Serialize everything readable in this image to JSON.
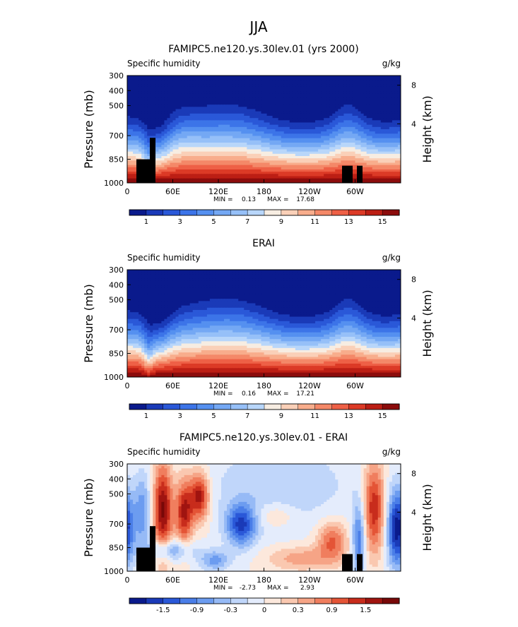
{
  "figure": {
    "main_title": "JJA"
  },
  "chart_data": [
    {
      "type": "heatmap",
      "id": "model",
      "title": "FAMIPC5.ne120.ys.30lev.01 (yrs 2000)",
      "left_label": "Specific humidity",
      "right_label": "g/kg",
      "ylabel": "Pressure (mb)",
      "y2label": "Height (km)",
      "xticks": [
        "0",
        "60E",
        "120E",
        "180",
        "120W",
        "60W"
      ],
      "yticks": [
        "300",
        "400",
        "500",
        "700",
        "850",
        "1000"
      ],
      "y2ticks": [
        "8",
        "4"
      ],
      "stats": {
        "min_label": "MIN =",
        "min": "0.13",
        "max_label": "MAX =",
        "max": "17.68"
      },
      "colorbar_labels": [
        "1",
        "3",
        "5",
        "7",
        "9",
        "11",
        "13",
        "15"
      ],
      "value_range": [
        0,
        17.68
      ]
    },
    {
      "type": "heatmap",
      "id": "obs",
      "title": "ERAI",
      "left_label": "Specific humidity",
      "right_label": "g/kg",
      "ylabel": "Pressure (mb)",
      "y2label": "Height (km)",
      "xticks": [
        "0",
        "60E",
        "120E",
        "180",
        "120W",
        "60W"
      ],
      "yticks": [
        "300",
        "400",
        "500",
        "700",
        "850",
        "1000"
      ],
      "y2ticks": [
        "8",
        "4"
      ],
      "stats": {
        "min_label": "MIN =",
        "min": "0.16",
        "max_label": "MAX =",
        "max": "17.21"
      },
      "colorbar_labels": [
        "1",
        "3",
        "5",
        "7",
        "9",
        "11",
        "13",
        "15"
      ],
      "value_range": [
        0,
        17.21
      ]
    },
    {
      "type": "heatmap",
      "id": "diff",
      "title": "FAMIPC5.ne120.ys.30lev.01 - ERAI",
      "left_label": "Specific humidity",
      "right_label": "g/kg",
      "ylabel": "Pressure (mb)",
      "y2label": "Height (km)",
      "xticks": [
        "0",
        "60E",
        "120E",
        "180",
        "120W",
        "60W"
      ],
      "yticks": [
        "300",
        "400",
        "500",
        "700",
        "850",
        "1000"
      ],
      "y2ticks": [
        "8",
        "4"
      ],
      "stats": {
        "min_label": "MIN =",
        "min": "-2.73",
        "max_label": "MAX =",
        "max": "2.93"
      },
      "colorbar_labels": [
        "-1.5",
        "-0.9",
        "-0.3",
        "0",
        "0.3",
        "0.9",
        "1.5"
      ],
      "value_range": [
        -2.73,
        2.93
      ]
    }
  ],
  "colors": {
    "abs_scale": [
      "#0a1a8c",
      "#1a3ab8",
      "#2a58d8",
      "#3c74e8",
      "#5590f0",
      "#74a8f4",
      "#96c0f8",
      "#b8d6fa",
      "#f7ede2",
      "#fad0b8",
      "#f8ad8c",
      "#f48868",
      "#ee6046",
      "#dc3a26",
      "#bc1e14",
      "#8c0c0c"
    ],
    "diff_scale": [
      "#0a1a8c",
      "#1a3ab8",
      "#2a58d8",
      "#4a7ee8",
      "#6c9cf0",
      "#96baf6",
      "#c0d6fa",
      "#e4ecfc",
      "#fce8dc",
      "#fac8b0",
      "#f6a486",
      "#f07e5e",
      "#e45436",
      "#c82c1c",
      "#a01410",
      "#780808"
    ],
    "terrain": "#000000"
  }
}
